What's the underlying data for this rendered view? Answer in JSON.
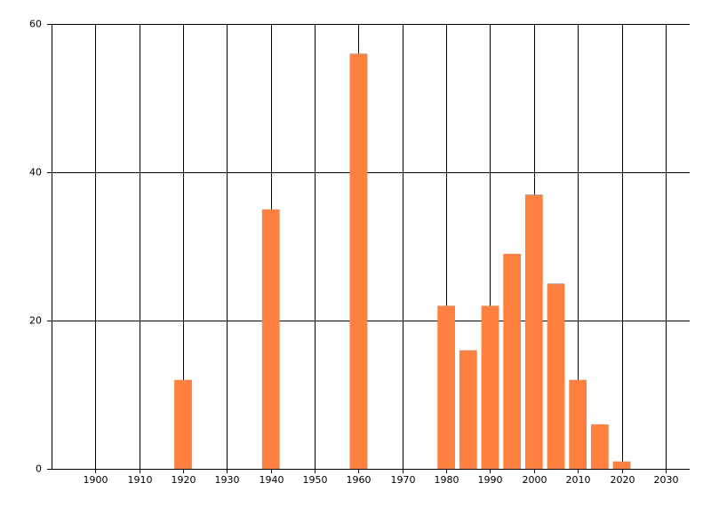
{
  "chart_data": {
    "type": "bar",
    "x": [
      1920,
      1940,
      1960,
      1980,
      1985,
      1990,
      1995,
      2000,
      2005,
      2010,
      2015,
      2020
    ],
    "values": [
      12,
      35,
      56,
      22,
      16,
      22,
      29,
      37,
      25,
      12,
      6,
      1
    ],
    "color": "#ff7f3f",
    "xlim": [
      1890,
      2035.5
    ],
    "xticks": [
      1900,
      1910,
      1920,
      1930,
      1940,
      1950,
      1960,
      1970,
      1980,
      1990,
      2000,
      2010,
      2020,
      2030
    ],
    "ylim": [
      0,
      60
    ],
    "yticks": [
      0,
      20,
      40,
      60
    ],
    "grid": true
  }
}
